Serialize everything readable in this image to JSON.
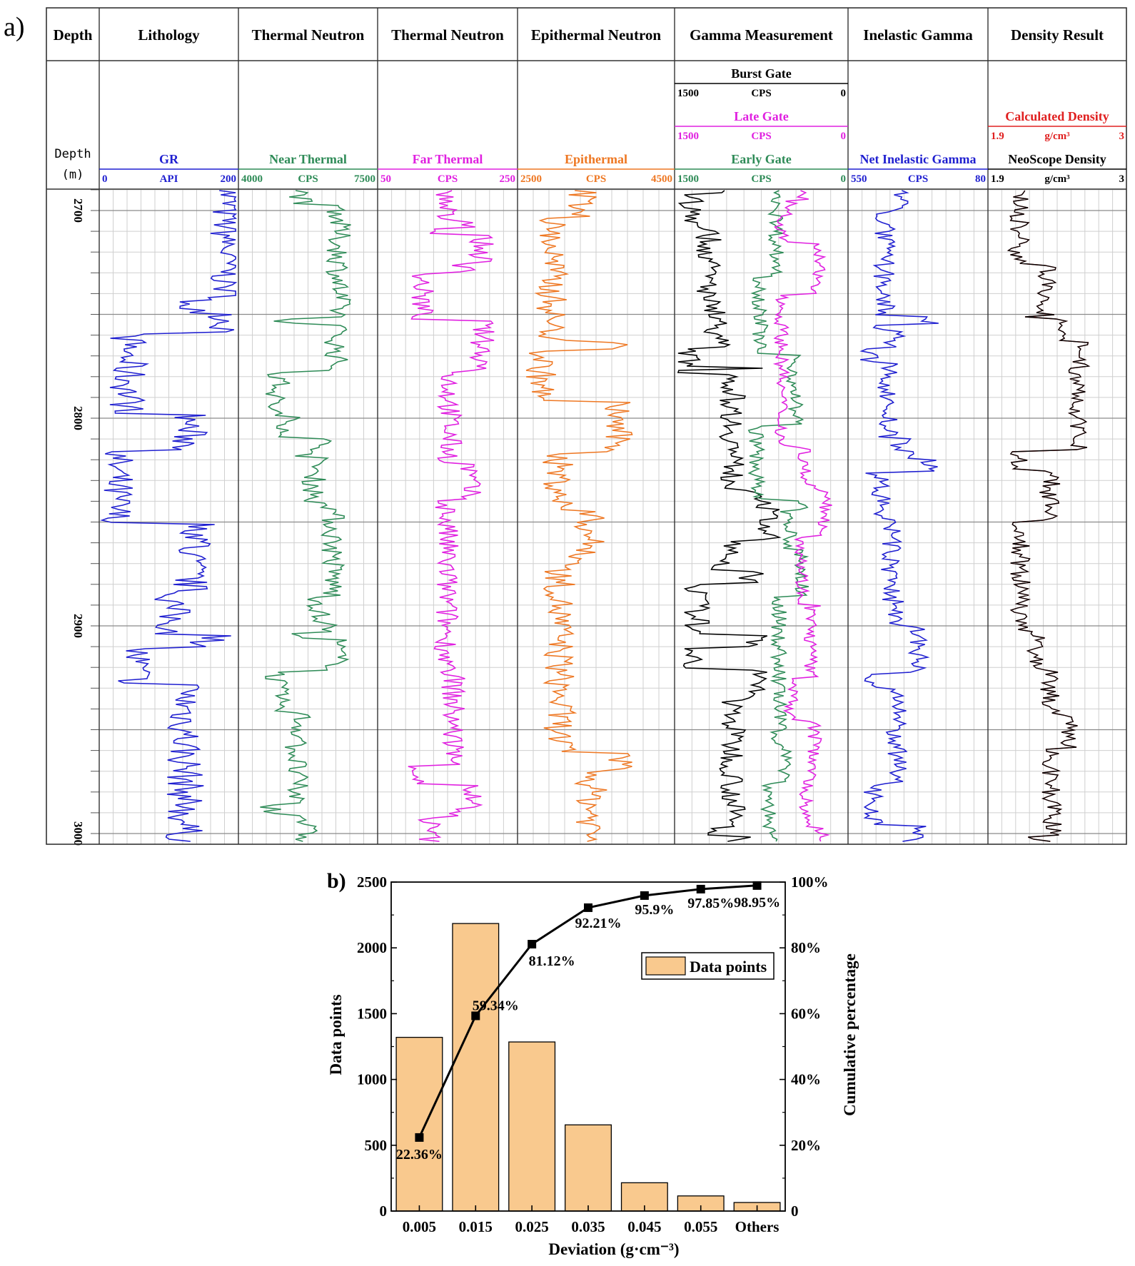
{
  "chart_data": [
    {
      "type": "line",
      "panel_label": "a)",
      "depth_range": [
        2700,
        3000
      ],
      "depth_ticks": [
        2700,
        2800,
        2900,
        3000
      ],
      "depth_header": {
        "title": "Depth",
        "label": "Depth",
        "unit": "(m)"
      },
      "tracks": [
        {
          "title": "Lithology",
          "curves": [
            {
              "name": "GR",
              "unit": "API",
              "min": "0",
              "max": "200",
              "color": "#1f1fd0"
            }
          ]
        },
        {
          "title": "Thermal Neutron",
          "curves": [
            {
              "name": "Near Thermal",
              "unit": "CPS",
              "min": "4000",
              "max": "7500",
              "color": "#2e8b57"
            }
          ]
        },
        {
          "title": "Thermal Neutron",
          "curves": [
            {
              "name": "Far Thermal",
              "unit": "CPS",
              "min": "50",
              "max": "250",
              "color": "#e020e0"
            }
          ]
        },
        {
          "title": "Epithermal Neutron",
          "curves": [
            {
              "name": "Epithermal",
              "unit": "CPS",
              "min": "2500",
              "max": "4500",
              "color": "#ee7722"
            }
          ]
        },
        {
          "title": "Gamma Measurement",
          "curves": [
            {
              "name": "Burst Gate",
              "unit": "CPS",
              "min": "1500",
              "max": "0",
              "color": "#000000"
            },
            {
              "name": "Late Gate",
              "unit": "CPS",
              "min": "1500",
              "max": "0",
              "color": "#e020e0"
            },
            {
              "name": "Early Gate",
              "unit": "CPS",
              "min": "1500",
              "max": "0",
              "color": "#2e8b57"
            }
          ]
        },
        {
          "title": "Inelastic Gamma",
          "curves": [
            {
              "name": "Net Inelastic Gamma",
              "unit": "CPS",
              "min": "550",
              "max": "80",
              "color": "#1f1fd0"
            }
          ]
        },
        {
          "title": "Density Result",
          "curves": [
            {
              "name": "Calculated Density",
              "unit": "g/cm³",
              "min": "1.9",
              "max": "3",
              "color": "#e02020"
            },
            {
              "name": "NeoScope Density",
              "unit": "g/cm³",
              "min": "1.9",
              "max": "3",
              "color": "#000000"
            }
          ]
        }
      ]
    },
    {
      "type": "bar",
      "panel_label": "b)",
      "categories": [
        "0.005",
        "0.015",
        "0.025",
        "0.035",
        "0.045",
        "0.055",
        "Others"
      ],
      "series": [
        {
          "name": "Data points",
          "type": "bar",
          "axis": "left",
          "color": "#f9c98e",
          "values": [
            1320,
            2185,
            1285,
            655,
            215,
            115,
            65
          ]
        },
        {
          "type": "line",
          "axis": "right",
          "color": "#000000",
          "values": [
            22.36,
            59.34,
            81.12,
            92.21,
            95.9,
            97.85,
            98.95
          ],
          "labels": [
            "22.36%",
            "59.34%",
            "81.12%",
            "92.21%",
            "95.9%",
            "97.85%",
            "98.95%"
          ]
        }
      ],
      "xlabel": "Deviation (g·cm⁻³)",
      "ylabel": "Data points",
      "y2label": "Cumulative percentage",
      "ylim": [
        0,
        2500
      ],
      "yticks": [
        "0",
        "500",
        "1000",
        "1500",
        "2000",
        "2500"
      ],
      "y2lim": [
        0,
        100
      ],
      "y2ticks": [
        "0",
        "20%",
        "40%",
        "60%",
        "80%",
        "100%"
      ],
      "legend": "top-right"
    }
  ]
}
